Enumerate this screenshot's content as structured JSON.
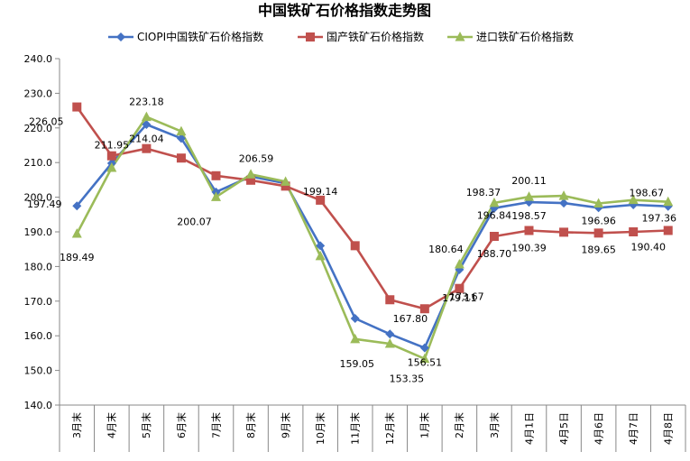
{
  "chart_data": {
    "type": "line",
    "title": "中国铁矿石价格指数走势图",
    "xlabel": "",
    "ylabel": "",
    "ylim": [
      140,
      240
    ],
    "yticks": [
      "140.0",
      "150.0",
      "160.0",
      "170.0",
      "180.0",
      "190.0",
      "200.0",
      "210.0",
      "220.0",
      "230.0",
      "240.0"
    ],
    "grid": false,
    "legend_position": "top",
    "categories": [
      "3月末",
      "4月末",
      "5月末",
      "6月末",
      "7月末",
      "8月末",
      "9月末",
      "10月末",
      "11月末",
      "12月末",
      "1月末",
      "2月末",
      "3月末",
      "4月1日",
      "4月5日",
      "4月6日",
      "4月7日",
      "4月8日"
    ],
    "series": [
      {
        "name": "CIOPI中国铁矿石价格指数",
        "color": "#4472C4",
        "marker": "diamond",
        "values": [
          197.49,
          209.8,
          221.0,
          217.0,
          201.5,
          206.0,
          204.0,
          186.0,
          165.0,
          160.5,
          156.51,
          179.11,
          196.84,
          198.57,
          198.3,
          196.96,
          197.8,
          197.36
        ]
      },
      {
        "name": "国产铁矿石价格指数",
        "color": "#C0504D",
        "marker": "square",
        "values": [
          226.05,
          211.95,
          214.04,
          211.3,
          206.2,
          204.9,
          203.2,
          199.14,
          186.0,
          170.4,
          167.8,
          173.67,
          188.7,
          190.39,
          189.9,
          189.65,
          190.0,
          190.4
        ]
      },
      {
        "name": "进口铁矿石价格指数",
        "color": "#9BBB59",
        "marker": "triangle",
        "values": [
          189.49,
          208.5,
          223.18,
          219.0,
          200.07,
          206.59,
          204.5,
          183.0,
          159.05,
          157.7,
          153.35,
          180.64,
          198.37,
          200.11,
          200.4,
          198.2,
          199.2,
          198.67
        ]
      }
    ],
    "data_labels": [
      {
        "series": 0,
        "index": 0,
        "text": "197.49"
      },
      {
        "series": 1,
        "index": 0,
        "text": "226.05"
      },
      {
        "series": 2,
        "index": 0,
        "text": "189.49"
      },
      {
        "series": 1,
        "index": 1,
        "text": "211.95"
      },
      {
        "series": 2,
        "index": 2,
        "text": "223.18"
      },
      {
        "series": 1,
        "index": 2,
        "text": "214.04"
      },
      {
        "series": 2,
        "index": 4,
        "text": "200.07"
      },
      {
        "series": 2,
        "index": 5,
        "text": "206.59"
      },
      {
        "series": 1,
        "index": 7,
        "text": "199.14"
      },
      {
        "series": 2,
        "index": 8,
        "text": "159.05"
      },
      {
        "series": 1,
        "index": 10,
        "text": "167.80"
      },
      {
        "series": 0,
        "index": 10,
        "text": "156.51"
      },
      {
        "series": 2,
        "index": 10,
        "text": "153.35"
      },
      {
        "series": 2,
        "index": 11,
        "text": "180.64"
      },
      {
        "series": 0,
        "index": 11,
        "text": "179.11"
      },
      {
        "series": 1,
        "index": 11,
        "text": "173.67"
      },
      {
        "series": 2,
        "index": 12,
        "text": "198.37"
      },
      {
        "series": 0,
        "index": 12,
        "text": "196.84"
      },
      {
        "series": 1,
        "index": 12,
        "text": "188.70"
      },
      {
        "series": 2,
        "index": 13,
        "text": "200.11"
      },
      {
        "series": 0,
        "index": 13,
        "text": "198.57"
      },
      {
        "series": 1,
        "index": 13,
        "text": "190.39"
      },
      {
        "series": 0,
        "index": 15,
        "text": "196.96"
      },
      {
        "series": 1,
        "index": 15,
        "text": "189.65"
      },
      {
        "series": 2,
        "index": 17,
        "text": "198.67"
      },
      {
        "series": 0,
        "index": 17,
        "text": "197.36"
      },
      {
        "series": 1,
        "index": 17,
        "text": "190.40"
      }
    ]
  }
}
